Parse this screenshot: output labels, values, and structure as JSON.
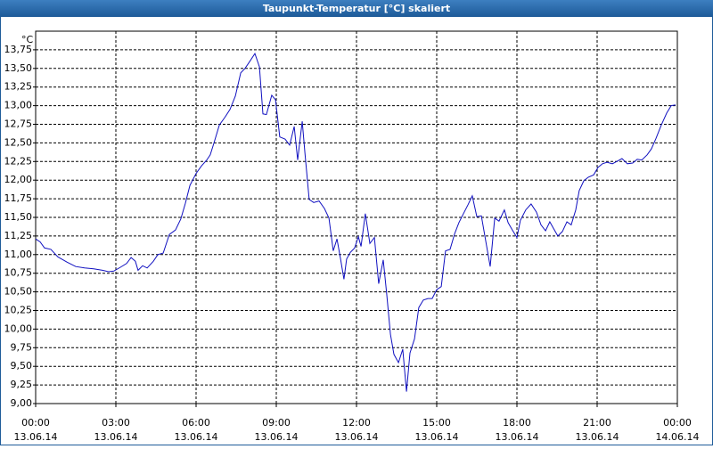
{
  "chart_data": {
    "type": "line",
    "title": "Taupunkt-Temperatur [°C] skaliert",
    "y_unit": "°C",
    "xlim": [
      0,
      24
    ],
    "xticks": [
      {
        "value": 0,
        "label": "00:00"
      },
      {
        "value": 3,
        "label": "03:00"
      },
      {
        "value": 6,
        "label": "06:00"
      },
      {
        "value": 9,
        "label": "09:00"
      },
      {
        "value": 12,
        "label": "12:00"
      },
      {
        "value": 15,
        "label": "15:00"
      },
      {
        "value": 18,
        "label": "18:00"
      },
      {
        "value": 21,
        "label": "21:00"
      },
      {
        "value": 24,
        "label": "00:00"
      }
    ],
    "xtick_dates": [
      "13.06.14",
      "13.06.14",
      "13.06.14",
      "13.06.14",
      "13.06.14",
      "13.06.14",
      "13.06.14",
      "13.06.14",
      "14.06.14"
    ],
    "ylim": [
      9,
      14
    ],
    "yticks": [
      {
        "value": 9,
        "label": "9,00"
      },
      {
        "value": 9.25,
        "label": "9,25"
      },
      {
        "value": 9.5,
        "label": "9,50"
      },
      {
        "value": 9.75,
        "label": "9,75"
      },
      {
        "value": 10,
        "label": "10,00"
      },
      {
        "value": 10.25,
        "label": "10,25"
      },
      {
        "value": 10.5,
        "label": "10,50"
      },
      {
        "value": 10.75,
        "label": "10,75"
      },
      {
        "value": 11,
        "label": "11,00"
      },
      {
        "value": 11.25,
        "label": "11,25"
      },
      {
        "value": 11.5,
        "label": "11,50"
      },
      {
        "value": 11.75,
        "label": "11,75"
      },
      {
        "value": 12,
        "label": "12,00"
      },
      {
        "value": 12.25,
        "label": "12,25"
      },
      {
        "value": 12.5,
        "label": "12,50"
      },
      {
        "value": 12.75,
        "label": "12,75"
      },
      {
        "value": 13,
        "label": "13,00"
      },
      {
        "value": 13.25,
        "label": "13,25"
      },
      {
        "value": 13.5,
        "label": "13,50"
      },
      {
        "value": 13.75,
        "label": "13,75"
      }
    ],
    "grid": true,
    "series": [
      {
        "color": "#1010c0",
        "x": [
          0,
          0.17,
          0.33,
          0.57,
          0.83,
          1.17,
          1.5,
          1.83,
          2.17,
          2.5,
          2.73,
          2.93,
          3.17,
          3.4,
          3.57,
          3.73,
          3.83,
          4,
          4.17,
          4.4,
          4.57,
          4.77,
          5,
          5.23,
          5.43,
          5.6,
          5.77,
          6,
          6.2,
          6.4,
          6.53,
          6.67,
          6.87,
          7.07,
          7.27,
          7.47,
          7.67,
          7.83,
          8,
          8.2,
          8.37,
          8.5,
          8.63,
          8.83,
          8.97,
          9.13,
          9.33,
          9.5,
          9.67,
          9.8,
          9.97,
          10.07,
          10.23,
          10.4,
          10.6,
          10.8,
          10.97,
          11.13,
          11.27,
          11.4,
          11.53,
          11.63,
          11.77,
          11.93,
          12.07,
          12.17,
          12.33,
          12.5,
          12.67,
          12.83,
          13,
          13.13,
          13.27,
          13.4,
          13.57,
          13.73,
          13.87,
          14,
          14.17,
          14.33,
          14.5,
          14.67,
          14.83,
          15,
          15.17,
          15.33,
          15.5,
          15.67,
          15.83,
          16,
          16.17,
          16.33,
          16.5,
          16.67,
          16.83,
          17,
          17.17,
          17.33,
          17.53,
          17.67,
          17.83,
          18,
          18.13,
          18.33,
          18.53,
          18.73,
          18.9,
          19.07,
          19.23,
          19.37,
          19.53,
          19.7,
          19.87,
          20.03,
          20.2,
          20.33,
          20.5,
          20.67,
          20.87,
          21.03,
          21.2,
          21.37,
          21.57,
          21.73,
          21.93,
          22.13,
          22.33,
          22.5,
          22.67,
          22.87,
          23.03,
          23.2,
          23.4,
          23.6,
          23.77,
          23.93
        ],
        "values": [
          11.21,
          11.17,
          11.09,
          11.07,
          10.97,
          10.9,
          10.84,
          10.82,
          10.81,
          10.79,
          10.77,
          10.78,
          10.83,
          10.88,
          10.96,
          10.91,
          10.79,
          10.85,
          10.82,
          10.91,
          11.0,
          11.02,
          11.27,
          11.33,
          11.48,
          11.69,
          11.93,
          12.09,
          12.19,
          12.27,
          12.34,
          12.5,
          12.74,
          12.84,
          12.95,
          13.13,
          13.44,
          13.5,
          13.59,
          13.7,
          13.52,
          12.89,
          12.88,
          13.14,
          13.08,
          12.58,
          12.55,
          12.47,
          12.72,
          12.27,
          12.79,
          12.37,
          11.74,
          11.7,
          11.72,
          11.62,
          11.49,
          11.05,
          11.21,
          10.95,
          10.67,
          10.94,
          11.03,
          11.09,
          11.24,
          11.11,
          11.55,
          11.15,
          11.23,
          10.61,
          10.93,
          10.47,
          9.93,
          9.66,
          9.55,
          9.73,
          9.16,
          9.68,
          9.87,
          10.29,
          10.39,
          10.41,
          10.41,
          10.53,
          10.57,
          11.05,
          11.07,
          11.28,
          11.43,
          11.55,
          11.67,
          11.79,
          11.51,
          11.52,
          11.19,
          10.84,
          11.49,
          11.45,
          11.6,
          11.43,
          11.33,
          11.23,
          11.46,
          11.6,
          11.68,
          11.57,
          11.4,
          11.32,
          11.44,
          11.35,
          11.25,
          11.31,
          11.44,
          11.4,
          11.6,
          11.86,
          11.99,
          12.04,
          12.07,
          12.17,
          12.22,
          12.24,
          12.22,
          12.25,
          12.29,
          12.22,
          12.23,
          12.28,
          12.27,
          12.34,
          12.42,
          12.56,
          12.74,
          12.9,
          13.0,
          13.01
        ]
      }
    ]
  }
}
